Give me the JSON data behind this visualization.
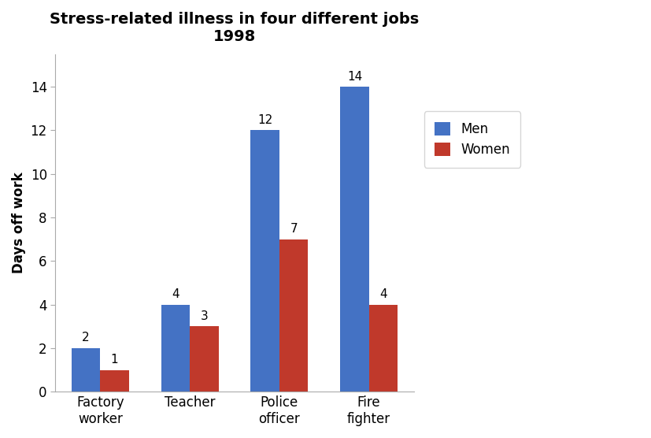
{
  "title_line1": "Stress-related illness in four different jobs",
  "title_line2": "1998",
  "categories": [
    "Factory\nworker",
    "Teacher",
    "Police\nofficer",
    "Fire\nfighter"
  ],
  "men_values": [
    2,
    4,
    12,
    14
  ],
  "women_values": [
    1,
    3,
    7,
    4
  ],
  "men_color": "#4472c4",
  "women_color": "#c0392b",
  "ylabel": "Days off work",
  "ylim": [
    0,
    15.5
  ],
  "yticks": [
    0,
    2,
    4,
    6,
    8,
    10,
    12,
    14
  ],
  "legend_labels": [
    "Men",
    "Women"
  ],
  "bar_width": 0.32,
  "title_fontsize": 14,
  "label_fontsize": 12,
  "tick_fontsize": 12,
  "annotation_fontsize": 11,
  "background_color": "#ffffff"
}
